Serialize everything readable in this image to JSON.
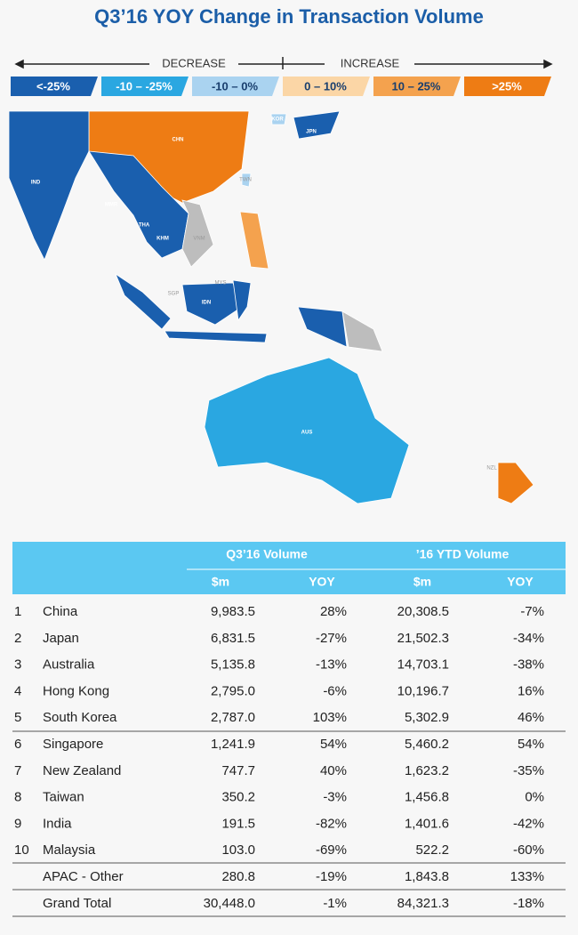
{
  "title": "Q3’16 YOY Change in Transaction Volume",
  "legend": {
    "decrease": "DECREASE",
    "increase": "INCREASE",
    "items": [
      {
        "label": "<-25%",
        "color": "#1a5fae"
      },
      {
        "label": "-10 – -25%",
        "color": "#2aa7e1"
      },
      {
        "label": "-10 – 0%",
        "color": "#aad3f0"
      },
      {
        "label": "0 – 10%",
        "color": "#fbd6a6"
      },
      {
        "label": "10 – 25%",
        "color": "#f4a24e"
      },
      {
        "label": ">25%",
        "color": "#ee7c14"
      }
    ]
  },
  "map_labels": [
    "CHN",
    "IND",
    "MMR",
    "THA",
    "KHM",
    "VNM",
    "SGP",
    "MYS",
    "IDN",
    "AUS",
    "NZL",
    "KOR",
    "JPN",
    "TWN"
  ],
  "table": {
    "groups": [
      "Q3’16 Volume",
      "’16 YTD Volume"
    ],
    "subheaders": [
      "$m",
      "YOY",
      "$m",
      "YOY"
    ],
    "rows": [
      [
        "1",
        "China",
        "9,983.5",
        "28%",
        "20,308.5",
        "-7%"
      ],
      [
        "2",
        "Japan",
        "6,831.5",
        "-27%",
        "21,502.3",
        "-34%"
      ],
      [
        "3",
        "Australia",
        "5,135.8",
        "-13%",
        "14,703.1",
        "-38%"
      ],
      [
        "4",
        "Hong Kong",
        "2,795.0",
        "-6%",
        "10,196.7",
        "16%"
      ],
      [
        "5",
        "South Korea",
        "2,787.0",
        "103%",
        "5,302.9",
        "46%"
      ],
      [
        "6",
        "Singapore",
        "1,241.9",
        "54%",
        "5,460.2",
        "54%"
      ],
      [
        "7",
        "New Zealand",
        "747.7",
        "40%",
        "1,623.2",
        "-35%"
      ],
      [
        "8",
        "Taiwan",
        "350.2",
        "-3%",
        "1,456.8",
        "0%"
      ],
      [
        "9",
        "India",
        "191.5",
        "-82%",
        "1,401.6",
        "-42%"
      ],
      [
        "10",
        "Malaysia",
        "103.0",
        "-69%",
        "522.2",
        "-60%"
      ],
      [
        "",
        "APAC - Other",
        "280.8",
        "-19%",
        "1,843.8",
        "133%"
      ],
      [
        "",
        "Grand Total",
        "30,448.0",
        "-1%",
        "84,321.3",
        "-18%"
      ]
    ]
  }
}
